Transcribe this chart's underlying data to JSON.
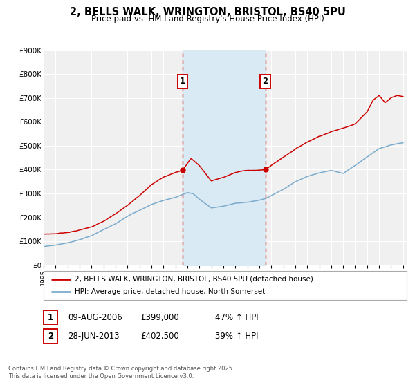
{
  "title": "2, BELLS WALK, WRINGTON, BRISTOL, BS40 5PU",
  "subtitle": "Price paid vs. HM Land Registry's House Price Index (HPI)",
  "ylim": [
    0,
    900000
  ],
  "yticks": [
    0,
    100000,
    200000,
    300000,
    400000,
    500000,
    600000,
    700000,
    800000,
    900000
  ],
  "ytick_labels": [
    "£0",
    "£100K",
    "£200K",
    "£300K",
    "£400K",
    "£500K",
    "£600K",
    "£700K",
    "£800K",
    "£900K"
  ],
  "background_color": "#ffffff",
  "plot_bg_color": "#f0f0f0",
  "grid_color": "#ffffff",
  "red_line_color": "#cc0000",
  "blue_line_color": "#7aabcc",
  "shade_color": "#daeaf5",
  "dashed_line_color": "#cc0000",
  "transaction1": {
    "date_num": 2006.6,
    "value": 399000,
    "label": "1",
    "date_str": "09-AUG-2006",
    "pct": "47%"
  },
  "transaction2": {
    "date_num": 2013.5,
    "value": 402500,
    "label": "2",
    "date_str": "28-JUN-2013",
    "pct": "39%"
  },
  "legend_line1": "2, BELLS WALK, WRINGTON, BRISTOL, BS40 5PU (detached house)",
  "legend_line2": "HPI: Average price, detached house, North Somerset",
  "footer": "Contains HM Land Registry data © Crown copyright and database right 2025.\nThis data is licensed under the Open Government Licence v3.0.",
  "table_row1": [
    "1",
    "09-AUG-2006",
    "£399,000",
    "47% ↑ HPI"
  ],
  "table_row2": [
    "2",
    "28-JUN-2013",
    "£402,500",
    "39% ↑ HPI"
  ],
  "red_key_times": [
    1995,
    1996,
    1997,
    1998,
    1999,
    2000,
    2001,
    2002,
    2003,
    2004,
    2005,
    2006,
    2006.6,
    2007.3,
    2008,
    2009,
    2010,
    2011,
    2012,
    2013,
    2013.5,
    2014,
    2015,
    2016,
    2017,
    2018,
    2019,
    2020,
    2021,
    2022,
    2022.5,
    2023,
    2023.5,
    2024,
    2024.5,
    2025
  ],
  "red_key_vals": [
    130000,
    132000,
    138000,
    148000,
    162000,
    185000,
    215000,
    250000,
    290000,
    340000,
    370000,
    390000,
    399000,
    450000,
    420000,
    355000,
    370000,
    390000,
    400000,
    400000,
    402500,
    420000,
    455000,
    490000,
    520000,
    545000,
    565000,
    580000,
    600000,
    650000,
    700000,
    720000,
    690000,
    710000,
    720000,
    715000
  ],
  "hpi_key_times": [
    1995,
    1996,
    1997,
    1998,
    1999,
    2000,
    2001,
    2002,
    2003,
    2004,
    2005,
    2006,
    2007,
    2007.5,
    2008,
    2009,
    2010,
    2011,
    2012,
    2013,
    2013.5,
    2014,
    2015,
    2016,
    2017,
    2018,
    2019,
    2020,
    2021,
    2022,
    2023,
    2024,
    2025
  ],
  "hpi_key_vals": [
    78000,
    83000,
    92000,
    105000,
    122000,
    148000,
    172000,
    205000,
    230000,
    255000,
    272000,
    285000,
    305000,
    300000,
    278000,
    242000,
    250000,
    262000,
    266000,
    274000,
    280000,
    292000,
    318000,
    350000,
    372000,
    388000,
    398000,
    385000,
    418000,
    455000,
    490000,
    505000,
    515000
  ]
}
